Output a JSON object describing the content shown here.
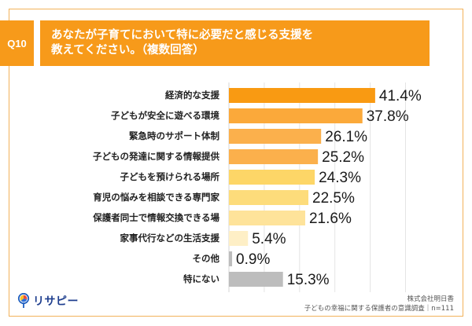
{
  "question": {
    "number": "Q10",
    "title_line1": "あなたが子育てにおいて特に必要だと感じる支援を",
    "title_line2": "教えてください。（複数回答）"
  },
  "colors": {
    "frame": "#F2B25A",
    "header": "#F79A1A",
    "gridline": "#E4E4E4"
  },
  "chart_data": {
    "type": "bar",
    "orientation": "horizontal",
    "title": "あなたが子育てにおいて特に必要だと感じる支援を教えてください。（複数回答）",
    "xlabel": "",
    "ylabel": "",
    "xlim": [
      0,
      50
    ],
    "grid": true,
    "unit": "%",
    "categories": [
      "経済的な支援",
      "子どもが安全に遊べる環境",
      "緊急時のサポート体制",
      "子どもの発達に関する情報提供",
      "子どもを預けられる場所",
      "育児の悩みを相談できる専門家",
      "保護者同士で情報交換できる場",
      "家事代行などの生活支援",
      "その他",
      "特にない"
    ],
    "values": [
      41.4,
      37.8,
      26.1,
      25.2,
      24.3,
      22.5,
      21.6,
      5.4,
      0.9,
      15.3
    ],
    "value_labels": [
      "41.4%",
      "37.8%",
      "26.1%",
      "25.2%",
      "24.3%",
      "22.5%",
      "21.6%",
      "5.4%",
      "0.9%",
      "15.3%"
    ],
    "bar_colors": [
      "#F99A12",
      "#FBA93A",
      "#FBB04C",
      "#FBB04C",
      "#FDD667",
      "#FDDC7B",
      "#FEE39A",
      "#FEEFC6",
      "#BDBDBD",
      "#BDBDBD"
    ]
  },
  "source": {
    "company": "株式会社明日香",
    "survey": "子どもの幸福に関する保護者の意識調査｜n=111"
  },
  "logo": {
    "text": "リサピー",
    "icon": "magnifier-pie-icon"
  }
}
